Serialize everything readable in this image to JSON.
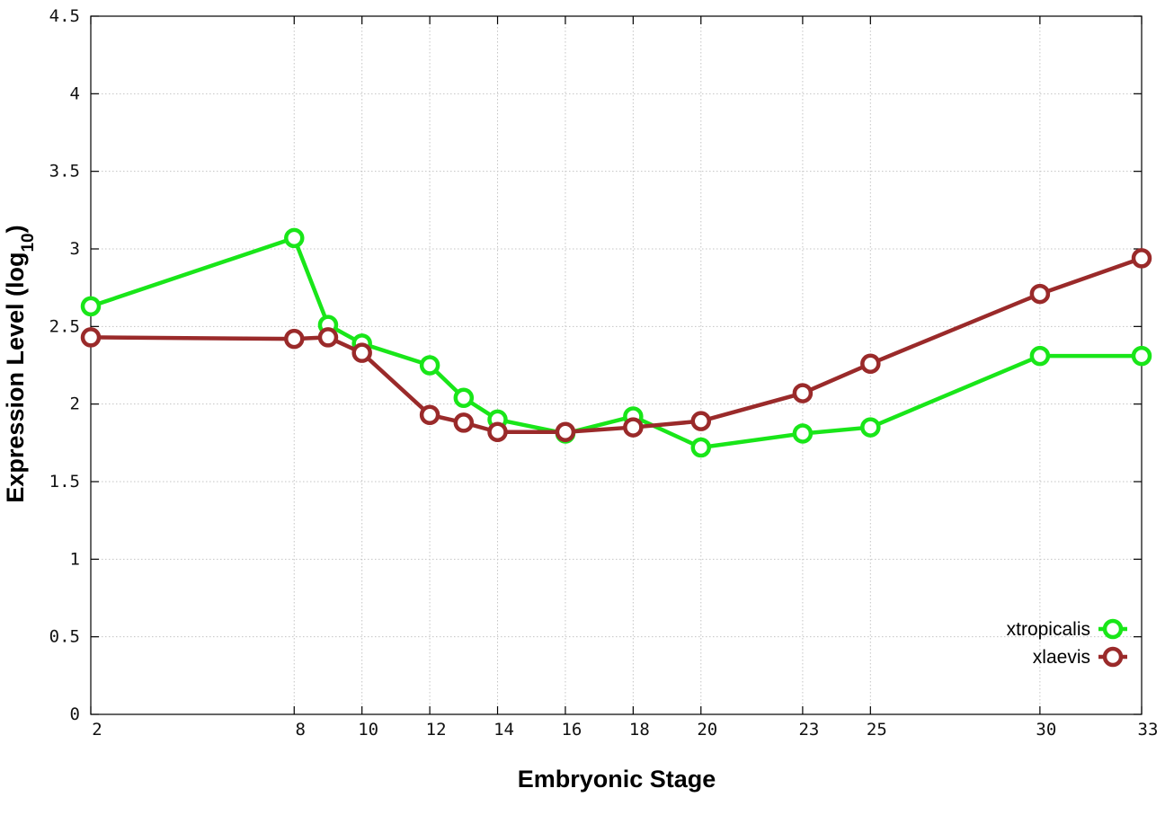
{
  "chart_data": {
    "type": "line",
    "xlabel": "Embryonic Stage",
    "ylabel_main": "Expression Level (log",
    "ylabel_sub": "10",
    "ylabel_close": ")",
    "xlim": [
      2,
      33
    ],
    "ylim": [
      0,
      4.5
    ],
    "x_ticks": [
      2,
      8,
      10,
      12,
      14,
      16,
      18,
      20,
      23,
      25,
      30,
      33
    ],
    "y_ticks": [
      0,
      0.5,
      1,
      1.5,
      2,
      2.5,
      3,
      3.5,
      4,
      4.5
    ],
    "y_tick_labels": [
      "0",
      "0.5",
      "1",
      "1.5",
      "2",
      "2.5",
      "3",
      "3.5",
      "4",
      "4.5"
    ],
    "grid": true,
    "legend_position": "bottom-right",
    "x": [
      2,
      8,
      9,
      10,
      12,
      13,
      14,
      16,
      18,
      20,
      23,
      25,
      30,
      33
    ],
    "series": [
      {
        "name": "xtropicalis",
        "color": "#19e619",
        "values": [
          2.63,
          3.07,
          2.51,
          2.39,
          2.25,
          2.04,
          1.9,
          1.81,
          1.92,
          1.72,
          1.81,
          1.85,
          2.31,
          2.31
        ]
      },
      {
        "name": "xlaevis",
        "color": "#9a2a2a",
        "values": [
          2.43,
          2.42,
          2.43,
          2.33,
          1.93,
          1.88,
          1.82,
          1.82,
          1.85,
          1.89,
          2.07,
          2.26,
          2.71,
          2.94
        ]
      }
    ]
  }
}
